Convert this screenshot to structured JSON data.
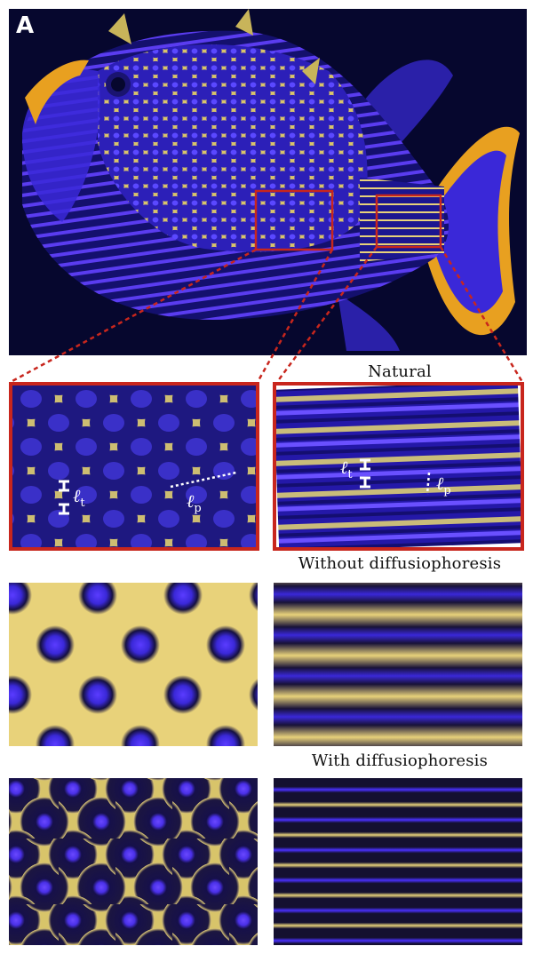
{
  "figure": {
    "panel_label": "A",
    "headings": {
      "natural": "Natural",
      "without": "Without diffusiophoresis",
      "with": "With diffusiophoresis"
    },
    "annotations": {
      "left_lt": "ℓ",
      "left_lt_sub": "t",
      "left_lp": "ℓ",
      "left_lp_sub": "p",
      "right_lt": "ℓ",
      "right_lt_sub": "t",
      "right_lp": "ℓ",
      "right_lp_sub": "p"
    }
  },
  "colors": {
    "background": "#06072e",
    "cell_purple": "#3a28d8",
    "pattern_yellow": "#e8d27a",
    "fin_orange": "#e8a020",
    "highlight_red": "#c8261d"
  }
}
